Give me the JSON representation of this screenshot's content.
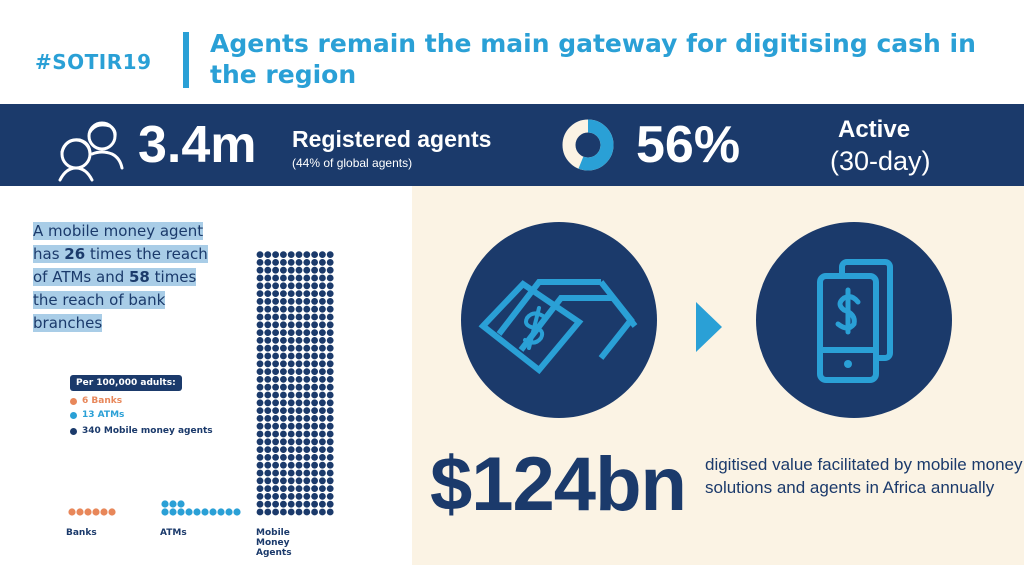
{
  "header": {
    "hashtag": "#SOTIR19",
    "title": "Agents remain the main gateway for digitising cash in the region"
  },
  "stats": {
    "agents_value": "3.4m",
    "agents_label": "Registered agents",
    "agents_sub": "(44% of global agents)",
    "active_value": "56%",
    "active_fraction": 0.56,
    "active_label": "Active",
    "active_sub": "(30-day)"
  },
  "reach": {
    "line1": "A mobile money agent",
    "line2_pre": "has ",
    "line2_num": "26",
    "line2_post": " times the reach",
    "line3_pre": "of ATMs and ",
    "line3_num": "58",
    "line3_post": " times",
    "line4": "the reach of bank",
    "line5": "branches"
  },
  "chart_data": {
    "type": "dot",
    "title": "Per 100,000 adults:",
    "legend": [
      {
        "text": "6 Banks",
        "color": "#e8875a"
      },
      {
        "text": "13 ATMs",
        "color": "#2aa0d6"
      },
      {
        "text": "340 Mobile money agents",
        "color": "#1b3a6b"
      }
    ],
    "categories": [
      "Banks",
      "ATMs",
      "Mobile Money Agents"
    ],
    "values": [
      6,
      13,
      340
    ],
    "colors": [
      "#e8875a",
      "#2aa0d6",
      "#1b3a6b"
    ]
  },
  "digitised": {
    "value": "$124bn",
    "description": "digitised value facilitated by mobile money solutions and agents in Africa annually"
  },
  "icons": {
    "agents": "people-icon",
    "cash": "banknotes-icon",
    "arrow": "arrow-right-icon",
    "phone": "mobile-money-icon"
  }
}
